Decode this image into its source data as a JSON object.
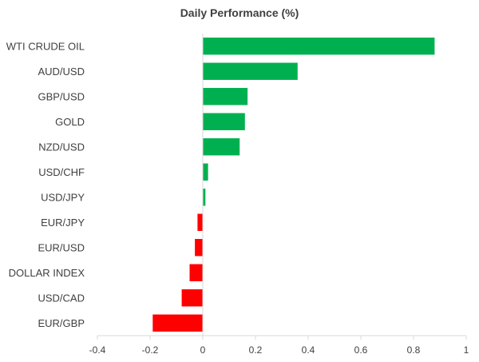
{
  "chart_data": {
    "type": "bar",
    "orientation": "horizontal",
    "title": "Daily Performance (%)",
    "xlabel": "",
    "ylabel": "",
    "categories": [
      "WTI CRUDE OIL",
      "AUD/USD",
      "GBP/USD",
      "GOLD",
      "NZD/USD",
      "USD/CHF",
      "USD/JPY",
      "EUR/JPY",
      "EUR/USD",
      "DOLLAR INDEX",
      "USD/CAD",
      "EUR/GBP"
    ],
    "values": [
      0.88,
      0.36,
      0.17,
      0.16,
      0.14,
      0.02,
      0.01,
      -0.02,
      -0.03,
      -0.05,
      -0.08,
      -0.19
    ],
    "xlim": [
      -0.4,
      1
    ],
    "xticks": [
      "-0.4",
      "-0.2",
      "0",
      "0.2",
      "0.4",
      "0.6",
      "0.8",
      "1"
    ],
    "xtick_values": [
      -0.4,
      -0.2,
      0,
      0.2,
      0.4,
      0.6,
      0.8,
      1
    ],
    "grid": false,
    "legend": "none",
    "colors": {
      "positive": "#00b050",
      "negative": "#ff0000",
      "axis": "#d9d9d9",
      "text": "#404040"
    }
  }
}
